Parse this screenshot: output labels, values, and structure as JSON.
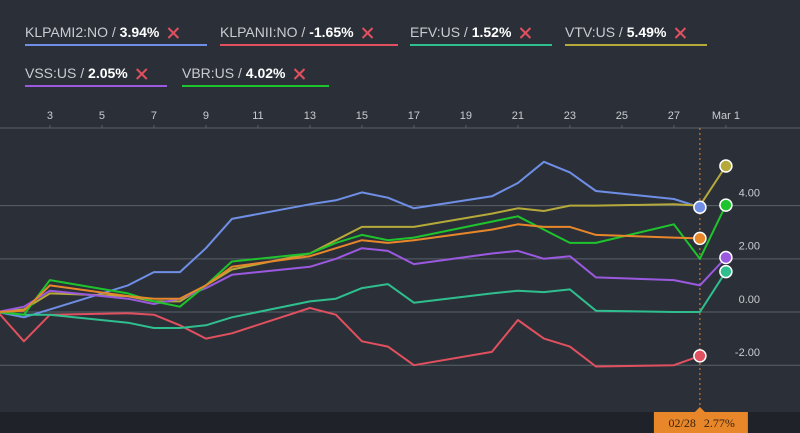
{
  "chart_data": {
    "type": "line",
    "x": [
      1,
      2,
      3,
      6,
      7,
      8,
      9,
      10,
      13,
      14,
      15,
      16,
      17,
      20,
      21,
      22,
      23,
      24,
      27,
      28,
      29
    ],
    "xlim": [
      1.08,
      31.85
    ],
    "xticks": [
      3,
      5,
      7,
      9,
      11,
      13,
      15,
      17,
      19,
      21,
      23,
      25,
      27,
      {
        "value": 29,
        "label": "Mar 1"
      }
    ],
    "ylim": [
      -3.76,
      6.92
    ],
    "yticks": [
      {
        "value": 4,
        "label": "4.00"
      },
      {
        "value": 2,
        "label": "2.00"
      },
      {
        "value": 0,
        "label": "0.00"
      },
      {
        "value": -2,
        "label": "-2.00"
      }
    ],
    "grid": true,
    "series": [
      {
        "name": "KLPAMI2:NO",
        "value_label": "3.94%",
        "color": "#6f8fe6",
        "values": [
          0,
          -0.2,
          0.1,
          1.0,
          1.5,
          1.5,
          2.4,
          3.5,
          4.05,
          4.2,
          4.5,
          4.3,
          3.9,
          4.35,
          4.85,
          5.65,
          5.25,
          4.55,
          4.25,
          3.94,
          null
        ]
      },
      {
        "name": "KLPANII:NO",
        "value_label": "-1.65%",
        "color": "#e0505f",
        "values": [
          0,
          -1.1,
          -0.1,
          -0.05,
          -0.1,
          -0.5,
          -1.0,
          -0.8,
          0.15,
          -0.1,
          -1.1,
          -1.3,
          -2.0,
          -1.5,
          -0.3,
          -1.0,
          -1.3,
          -2.05,
          -2.0,
          -1.65,
          null
        ]
      },
      {
        "name": "EFV:US",
        "value_label": "1.52%",
        "color": "#2fbf8f",
        "values": [
          0,
          -0.1,
          -0.1,
          -0.4,
          -0.6,
          -0.6,
          -0.5,
          -0.2,
          0.4,
          0.5,
          0.9,
          1.05,
          0.35,
          0.7,
          0.8,
          0.75,
          0.85,
          0.05,
          0.0,
          0.0,
          1.52
        ]
      },
      {
        "name": "VTV:US",
        "value_label": "5.49%",
        "color": "#b5a93a",
        "values": [
          0,
          0.1,
          0.7,
          0.6,
          0.4,
          0.4,
          1.0,
          1.6,
          2.2,
          2.7,
          3.2,
          3.2,
          3.2,
          3.7,
          3.9,
          3.8,
          4.0,
          4.0,
          4.05,
          4.0,
          5.49
        ]
      },
      {
        "name": "VSS:US",
        "value_label": "2.05%",
        "color": "#9b59e0",
        "values": [
          0,
          0.2,
          0.8,
          0.5,
          0.3,
          0.5,
          0.9,
          1.4,
          1.7,
          2.0,
          2.4,
          2.3,
          1.8,
          2.2,
          2.3,
          2.0,
          2.1,
          1.3,
          1.2,
          1.0,
          2.05
        ]
      },
      {
        "name": "VBR:US",
        "value_label": "4.02%",
        "color": "#1ec42c",
        "values": [
          0,
          -0.1,
          1.2,
          0.7,
          0.4,
          0.2,
          1.0,
          1.9,
          2.2,
          2.6,
          2.9,
          2.7,
          2.8,
          3.4,
          3.6,
          3.1,
          2.6,
          2.6,
          3.3,
          2.0,
          4.02
        ]
      },
      {
        "color": "#e8862a",
        "values": [
          0,
          0.05,
          1.0,
          0.6,
          0.5,
          0.5,
          1.0,
          1.7,
          2.1,
          2.4,
          2.7,
          2.6,
          2.7,
          3.1,
          3.3,
          3.2,
          3.2,
          2.9,
          2.8,
          2.77,
          null
        ]
      }
    ],
    "tooltip": {
      "x": 28,
      "label": "02/28",
      "value": 2.77,
      "value_label": "2.77%",
      "color": "#e8862a"
    }
  }
}
